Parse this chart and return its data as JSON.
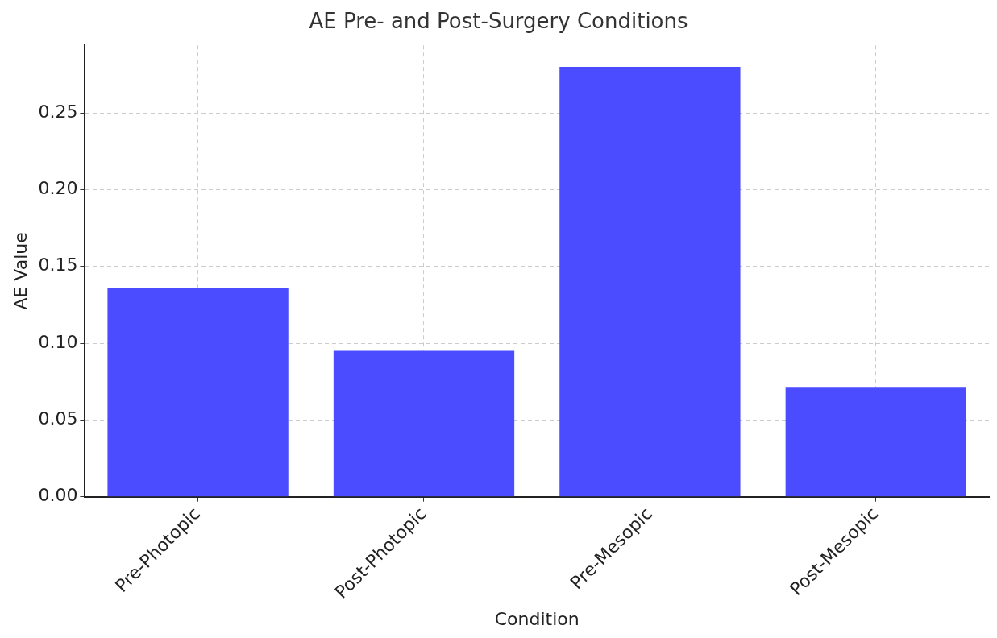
{
  "chart_data": {
    "type": "bar",
    "title": "AE Pre- and Post-Surgery Conditions",
    "xlabel": "Condition",
    "ylabel": "AE Value",
    "categories": [
      "Pre-Photopic",
      "Post-Photopic",
      "Pre-Mesopic",
      "Post-Mesopic"
    ],
    "values": [
      0.136,
      0.095,
      0.28,
      0.071
    ],
    "color": "#4b4bff",
    "ylim": [
      0,
      0.294
    ],
    "yticks": [
      {
        "value": 0,
        "label": "0.00"
      },
      {
        "value": 0.05,
        "label": "0.05"
      },
      {
        "value": 0.1,
        "label": "0.10"
      },
      {
        "value": 0.15,
        "label": "0.15"
      },
      {
        "value": 0.2,
        "label": "0.20"
      },
      {
        "value": 0.25,
        "label": "0.25"
      }
    ],
    "grid": true
  }
}
